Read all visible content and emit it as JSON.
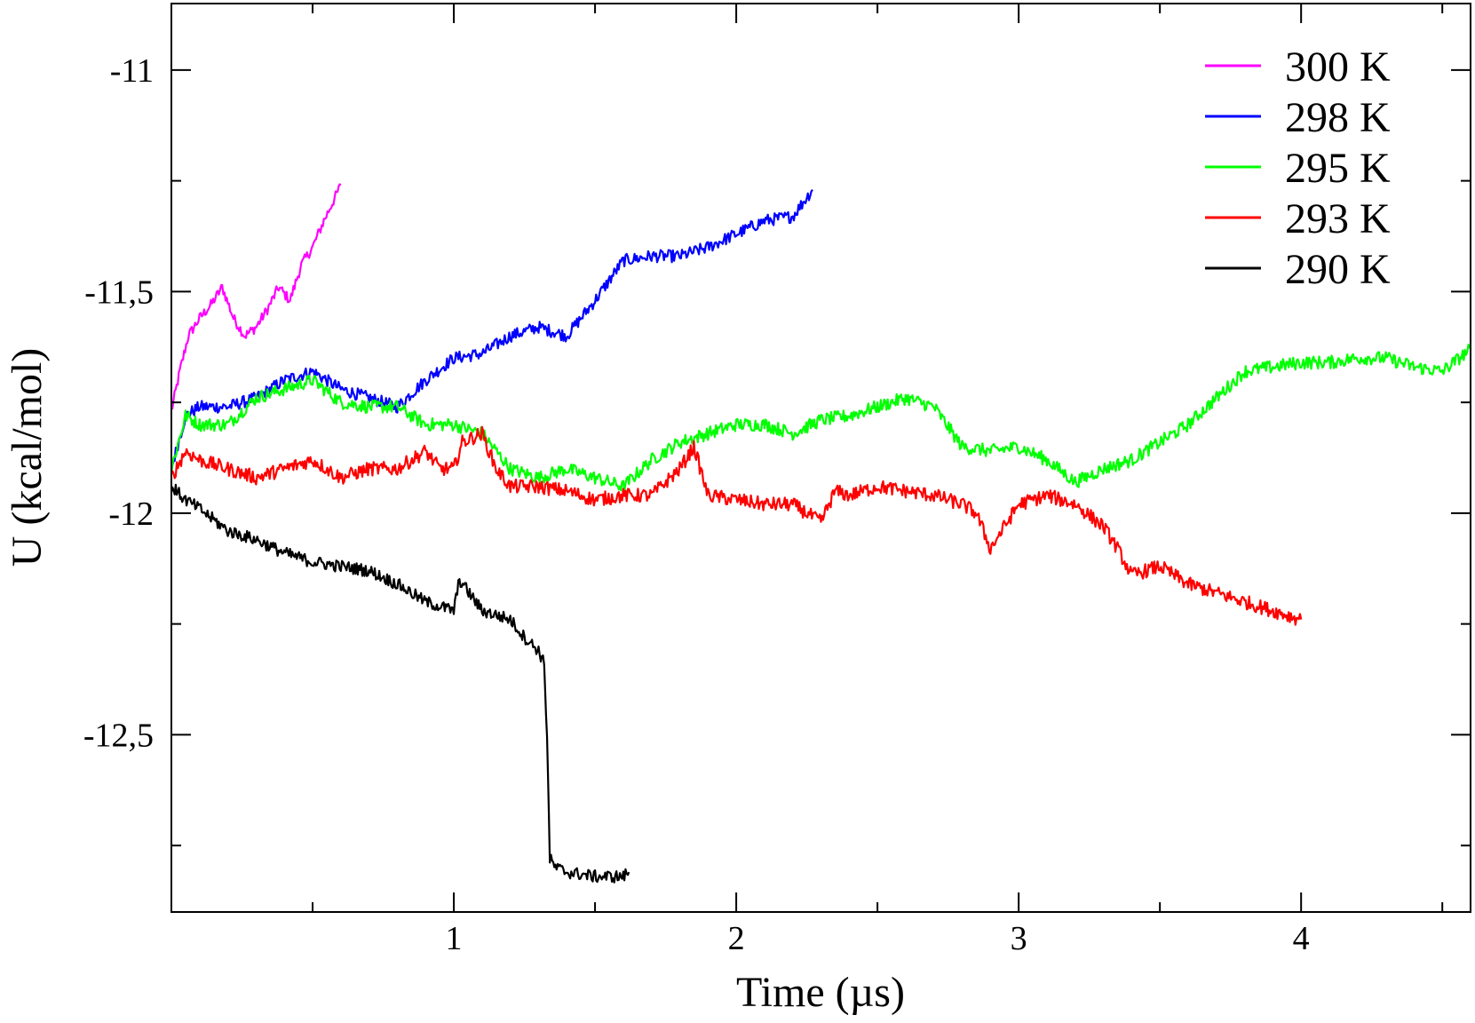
{
  "chart_data": {
    "type": "line",
    "title": "",
    "xlabel": "Time (µs)",
    "ylabel": "U (kcal/mol)",
    "xlim": [
      0,
      4.6
    ],
    "ylim": [
      -12.9,
      -10.85
    ],
    "x_major_ticks": [
      1,
      2,
      3,
      4
    ],
    "x_minor_ticks": [
      0.5,
      1.5,
      2.5,
      3.5,
      4.5
    ],
    "y_major_ticks": [
      -11,
      -11.5,
      -12,
      -12.5
    ],
    "y_minor_ticks": [
      -11.25,
      -11.75,
      -12.25,
      -12.75
    ],
    "x_tick_labels": [
      "1",
      "2",
      "3",
      "4"
    ],
    "y_tick_labels": [
      "-11",
      "-11,5",
      "-12",
      "-12,5"
    ],
    "grid": false,
    "legend_position": "top-right",
    "series": [
      {
        "name": "300 K",
        "color": "#ff00ff",
        "noise": 0.012,
        "x": [
          0,
          0.03,
          0.06,
          0.1,
          0.14,
          0.18,
          0.22,
          0.26,
          0.3,
          0.34,
          0.38,
          0.42,
          0.46,
          0.5,
          0.54,
          0.57,
          0.6
        ],
        "y": [
          -11.77,
          -11.68,
          -11.6,
          -11.56,
          -11.53,
          -11.49,
          -11.56,
          -11.6,
          -11.58,
          -11.54,
          -11.49,
          -11.52,
          -11.44,
          -11.4,
          -11.34,
          -11.3,
          -11.26
        ]
      },
      {
        "name": "298 K",
        "color": "#0000ff",
        "noise": 0.014,
        "x": [
          0,
          0.05,
          0.1,
          0.2,
          0.3,
          0.4,
          0.5,
          0.6,
          0.7,
          0.8,
          0.9,
          1.0,
          1.1,
          1.2,
          1.3,
          1.4,
          1.5,
          1.6,
          1.7,
          1.8,
          1.9,
          2.0,
          2.1,
          2.2,
          2.27
        ],
        "y": [
          -11.9,
          -11.78,
          -11.76,
          -11.76,
          -11.74,
          -11.7,
          -11.68,
          -11.72,
          -11.74,
          -11.76,
          -11.7,
          -11.65,
          -11.64,
          -11.6,
          -11.58,
          -11.6,
          -11.52,
          -11.43,
          -11.42,
          -11.42,
          -11.4,
          -11.37,
          -11.34,
          -11.33,
          -11.27
        ]
      },
      {
        "name": "295 K",
        "color": "#00ff00",
        "noise": 0.015,
        "x": [
          0,
          0.05,
          0.1,
          0.2,
          0.3,
          0.4,
          0.5,
          0.6,
          0.7,
          0.8,
          0.9,
          1.0,
          1.1,
          1.2,
          1.3,
          1.4,
          1.5,
          1.6,
          1.7,
          1.8,
          1.9,
          2.0,
          2.1,
          2.2,
          2.3,
          2.4,
          2.5,
          2.6,
          2.7,
          2.8,
          2.9,
          3.0,
          3.1,
          3.2,
          3.3,
          3.4,
          3.5,
          3.6,
          3.7,
          3.8,
          3.9,
          4.0,
          4.1,
          4.2,
          4.3,
          4.4,
          4.5,
          4.6
        ],
        "y": [
          -11.9,
          -11.78,
          -11.8,
          -11.8,
          -11.74,
          -11.72,
          -11.7,
          -11.75,
          -11.76,
          -11.76,
          -11.8,
          -11.8,
          -11.82,
          -11.9,
          -11.92,
          -11.9,
          -11.92,
          -11.94,
          -11.88,
          -11.84,
          -11.82,
          -11.8,
          -11.8,
          -11.82,
          -11.79,
          -11.78,
          -11.76,
          -11.74,
          -11.76,
          -11.85,
          -11.86,
          -11.85,
          -11.88,
          -11.93,
          -11.9,
          -11.88,
          -11.84,
          -11.8,
          -11.74,
          -11.68,
          -11.67,
          -11.66,
          -11.66,
          -11.65,
          -11.65,
          -11.67,
          -11.68,
          -11.63
        ]
      },
      {
        "name": "293 K",
        "color": "#ff0000",
        "noise": 0.016,
        "x": [
          0,
          0.05,
          0.1,
          0.2,
          0.3,
          0.4,
          0.5,
          0.6,
          0.7,
          0.8,
          0.9,
          0.95,
          1.0,
          1.03,
          1.1,
          1.15,
          1.2,
          1.3,
          1.4,
          1.5,
          1.6,
          1.7,
          1.8,
          1.85,
          1.9,
          2.0,
          2.1,
          2.2,
          2.3,
          2.35,
          2.4,
          2.5,
          2.6,
          2.7,
          2.8,
          2.85,
          2.9,
          3.0,
          3.1,
          3.2,
          3.3,
          3.35,
          3.4,
          3.5,
          3.6,
          3.7,
          3.8,
          3.9,
          4.0
        ],
        "y": [
          -11.92,
          -11.86,
          -11.88,
          -11.9,
          -11.92,
          -11.9,
          -11.88,
          -11.92,
          -11.9,
          -11.9,
          -11.86,
          -11.9,
          -11.9,
          -11.84,
          -11.82,
          -11.9,
          -11.94,
          -11.94,
          -11.95,
          -11.97,
          -11.96,
          -11.96,
          -11.9,
          -11.85,
          -11.96,
          -11.97,
          -11.98,
          -11.98,
          -12.02,
          -11.95,
          -11.96,
          -11.94,
          -11.95,
          -11.96,
          -11.98,
          -12.0,
          -12.08,
          -11.98,
          -11.96,
          -11.98,
          -12.03,
          -12.08,
          -12.14,
          -12.12,
          -12.16,
          -12.18,
          -12.2,
          -12.22,
          -12.24
        ]
      },
      {
        "name": "290 K",
        "color": "#000000",
        "noise": 0.014,
        "x": [
          0,
          0.05,
          0.1,
          0.2,
          0.3,
          0.4,
          0.5,
          0.6,
          0.7,
          0.8,
          0.9,
          1.0,
          1.02,
          1.1,
          1.2,
          1.25,
          1.3,
          1.32,
          1.33,
          1.34,
          1.36,
          1.4,
          1.5,
          1.6,
          1.62
        ],
        "y": [
          -11.94,
          -11.97,
          -11.99,
          -12.04,
          -12.06,
          -12.09,
          -12.11,
          -12.12,
          -12.13,
          -12.16,
          -12.2,
          -12.22,
          -12.15,
          -12.22,
          -12.24,
          -12.28,
          -12.31,
          -12.34,
          -12.5,
          -12.78,
          -12.8,
          -12.81,
          -12.82,
          -12.82,
          -12.81
        ]
      }
    ]
  }
}
